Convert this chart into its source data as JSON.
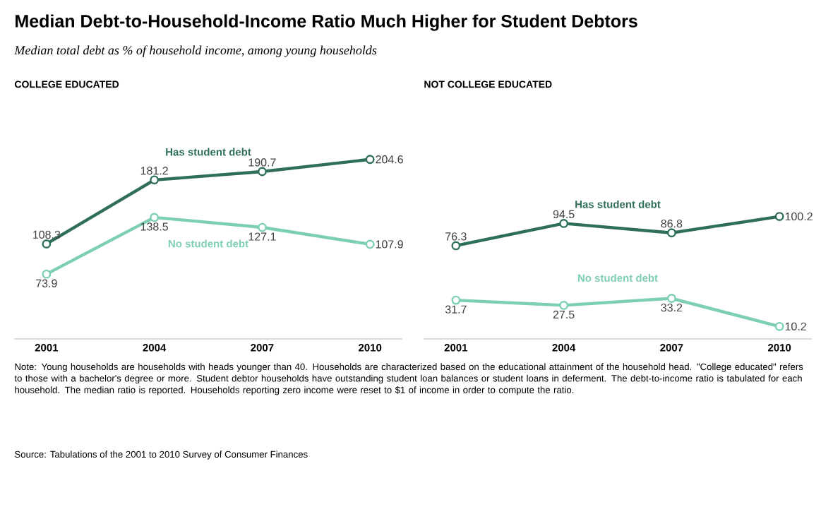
{
  "chart_data": [
    {
      "type": "line",
      "title": "COLLEGE EDUCATED",
      "categories": [
        "2001",
        "2004",
        "2007",
        "2010"
      ],
      "tick_labels": "x",
      "marker": "circle",
      "line_style": "solid",
      "data_labels": true,
      "series": [
        {
          "name": "Has student debt",
          "color": "#2f6f58",
          "values": [
            108.3,
            181.2,
            190.7,
            204.6
          ]
        },
        {
          "name": "No student debt",
          "color": "#7ccfb3",
          "values": [
            73.9,
            138.5,
            127.1,
            107.9
          ]
        }
      ],
      "annotations": [
        "Median Debt-to-Household-Income Ratio Much Higher for Student Debtors",
        "Median total debt as % of household income, among young households",
        "Note: Young households are households with heads younger than 40. Households are characterized based on the educational attainment of the household head. \"College educated\" refers to those with a bachelor's degree or more. Student debtor households have outstanding student loan balances or student loans in deferment. The debt-to-income ratio is tabulated for each household. The median ratio is reported. Households reporting zero income were reset to $1 of income in order to compute the ratio.",
        "Source: Tabulations of the 2001 to 2010 Survey of Consumer Finances"
      ]
    },
    {
      "type": "line",
      "title": "NOT COLLEGE EDUCATED",
      "categories": [
        "2001",
        "2004",
        "2007",
        "2010"
      ],
      "tick_labels": "x",
      "marker": "circle",
      "line_style": "solid",
      "data_labels": true,
      "series": [
        {
          "name": "Has student debt",
          "color": "#2f6f58",
          "values": [
            76.3,
            94.5,
            86.8,
            100.2
          ]
        },
        {
          "name": "No student debt",
          "color": "#7ccfb3",
          "values": [
            31.7,
            27.5,
            33.2,
            10.2
          ]
        }
      ]
    }
  ]
}
